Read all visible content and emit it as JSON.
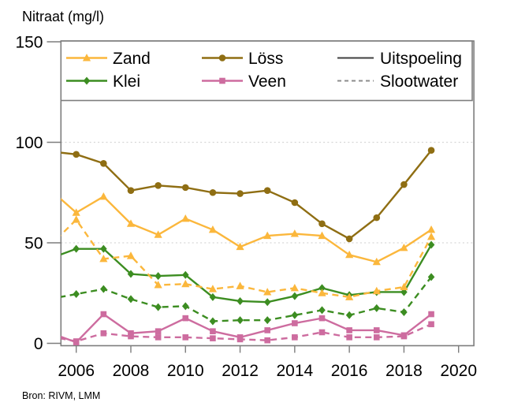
{
  "chart_data": {
    "type": "line",
    "title": "Nitraat (mg/l)",
    "source": "Bron: RIVM, LMM",
    "xlabel": "",
    "ylabel": "Nitraat (mg/l)",
    "x_axis": {
      "min": 2005.44,
      "max": 2020.56,
      "tick_labels": [
        2006,
        2008,
        2010,
        2012,
        2014,
        2016,
        2018,
        2020
      ]
    },
    "y_axis": {
      "min": 0,
      "max": 150,
      "tick_labels": [
        0,
        50,
        100,
        150
      ],
      "gridlines": [
        50,
        100
      ],
      "grid_style": "dotted"
    },
    "ylim": [
      0,
      150
    ],
    "x": [
      2005,
      2006,
      2007,
      2008,
      2009,
      2010,
      2011,
      2012,
      2013,
      2014,
      2015,
      2016,
      2017,
      2018,
      2019
    ],
    "series": [
      {
        "id": "zand-uitspoeling",
        "soil": "Zand",
        "water": "Uitspoeling",
        "line": "solid",
        "marker": "triangle",
        "color": "#FBB73C",
        "values": [
          77,
          65,
          73,
          59.5,
          54,
          62,
          56.5,
          48,
          53.5,
          54.5,
          53.5,
          44,
          40.5,
          47.5,
          56.5
        ]
      },
      {
        "id": "zand-slootwater",
        "soil": "Zand",
        "water": "Slootwater",
        "line": "dashed",
        "marker": "triangle",
        "color": "#FBB73C",
        "values": [
          48,
          61.5,
          42,
          43.5,
          29,
          29.5,
          27,
          28.5,
          25.5,
          27.5,
          25,
          23,
          26,
          28,
          53
        ]
      },
      {
        "id": "klei-uitspoeling",
        "soil": "Klei",
        "water": "Uitspoeling",
        "line": "solid",
        "marker": "diamond",
        "color": "#3C8D21",
        "values": [
          42,
          47,
          47,
          34.5,
          33.5,
          34,
          23,
          21,
          20.5,
          23.5,
          27.5,
          24,
          25.5,
          25.5,
          49
        ]
      },
      {
        "id": "klei-slootwater",
        "soil": "Klei",
        "water": "Slootwater",
        "line": "dashed",
        "marker": "diamond",
        "color": "#3C8D21",
        "values": [
          22,
          24.5,
          27,
          22,
          18,
          18.5,
          11,
          11.5,
          11.5,
          14,
          16.5,
          14,
          17.5,
          15.5,
          33
        ]
      },
      {
        "id": "loess-uitspoeling",
        "soil": "Löss",
        "water": "Uitspoeling",
        "line": "solid",
        "marker": "circle",
        "color": "#8F6E13",
        "values": [
          95.5,
          94,
          89.5,
          76,
          78.5,
          77.5,
          75,
          74.5,
          76,
          70,
          59.5,
          52,
          62.5,
          79,
          96
        ]
      },
      {
        "id": "veen-uitspoeling",
        "soil": "Veen",
        "water": "Uitspoeling",
        "line": "solid",
        "marker": "square",
        "color": "#CD6C9F",
        "values": [
          5.5,
          0.5,
          14.5,
          5,
          6,
          12.5,
          6,
          3,
          6.5,
          10,
          12.5,
          6.5,
          6.5,
          4,
          14.5
        ]
      },
      {
        "id": "veen-slootwater",
        "soil": "Veen",
        "water": "Slootwater",
        "line": "dashed",
        "marker": "square",
        "color": "#CD6C9F",
        "values": [
          3.5,
          1,
          5,
          3.5,
          3,
          3,
          2.5,
          2,
          1.5,
          3,
          5.5,
          3,
          3,
          3.5,
          9.5
        ]
      }
    ],
    "legend": {
      "position": "top",
      "soil_items": [
        {
          "label": "Zand",
          "marker": "triangle",
          "color": "#FBB73C"
        },
        {
          "label": "Klei",
          "marker": "diamond",
          "color": "#3C8D21"
        },
        {
          "label": "Löss",
          "marker": "circle",
          "color": "#8F6E13"
        },
        {
          "label": "Veen",
          "marker": "square",
          "color": "#CD6C9F"
        }
      ],
      "style_items": [
        {
          "label": "Uitspoeling",
          "line": "solid",
          "color": "#3F3F3F"
        },
        {
          "label": "Slootwater",
          "line": "dashed",
          "color": "#8C8C8C"
        }
      ]
    },
    "colors": {
      "grid": "#D6D6D6",
      "axis": "#7D7D7D",
      "text": "#000000",
      "legend_bg": "#FFFFFF"
    }
  }
}
